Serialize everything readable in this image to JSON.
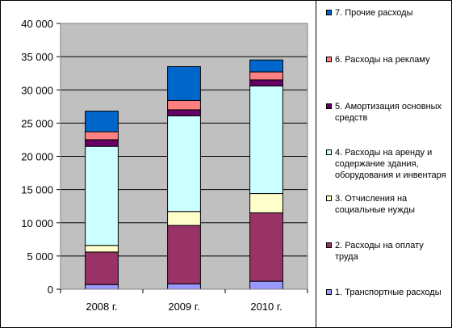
{
  "chart_data": {
    "type": "bar",
    "stacked": true,
    "categories": [
      "2008 г.",
      "2009 г.",
      "2010 г."
    ],
    "ylim": [
      0,
      40000
    ],
    "yticks": [
      0,
      5000,
      10000,
      15000,
      20000,
      25000,
      30000,
      35000,
      40000
    ],
    "ytick_labels": [
      "0",
      "5 000",
      "10 000",
      "15 000",
      "20 000",
      "25 000",
      "30 000",
      "35 000",
      "40 000"
    ],
    "grid": true,
    "legend_position": "right",
    "plot_background": "#c0c0c0",
    "series": [
      {
        "name": "1. Транспортные расходы",
        "color": "#9999ff",
        "values": [
          700,
          800,
          1200
        ]
      },
      {
        "name": "2. Расходы на оплату труда",
        "color": "#993366",
        "values": [
          4900,
          8800,
          10300
        ]
      },
      {
        "name": "3. Отчисления на социальные нужды",
        "color": "#ffffcc",
        "values": [
          1000,
          2100,
          2900
        ]
      },
      {
        "name": "4. Расходы на аренду и содержание здания, оборудования и инвентаря",
        "color": "#ccffff",
        "values": [
          14900,
          14400,
          16200
        ]
      },
      {
        "name": "5. Амортизация основных средств",
        "color": "#660066",
        "values": [
          1000,
          900,
          900
        ]
      },
      {
        "name": "6. Расходы на рекламу",
        "color": "#ff8080",
        "values": [
          1200,
          1400,
          1200
        ]
      },
      {
        "name": "7. Прочие расходы",
        "color": "#0066cc",
        "values": [
          3100,
          5100,
          1800
        ]
      }
    ]
  }
}
